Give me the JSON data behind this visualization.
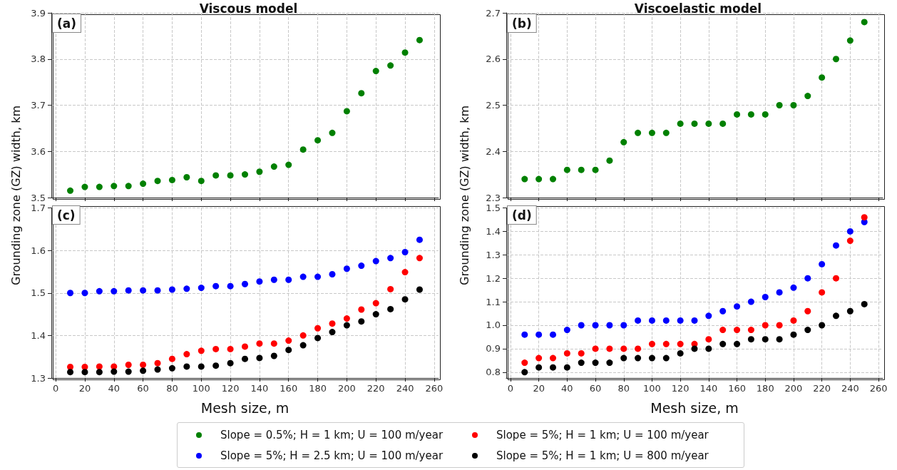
{
  "chart_data": [
    {
      "type": "scatter",
      "title": "Viscous model",
      "ylabel": "Grounding zone (GZ) width, km",
      "annotations": [
        "(a)"
      ],
      "x": [
        10,
        20,
        30,
        40,
        50,
        60,
        70,
        80,
        90,
        100,
        110,
        120,
        130,
        140,
        150,
        160,
        170,
        180,
        190,
        200,
        210,
        220,
        230,
        240,
        250
      ],
      "xlim": [
        -3,
        263
      ],
      "xticks": [
        0,
        20,
        40,
        60,
        80,
        100,
        120,
        140,
        160,
        180,
        200,
        220,
        240,
        260
      ],
      "ylim": [
        3.5,
        3.9
      ],
      "yticks": [
        3.5,
        3.6,
        3.7,
        3.8,
        3.9
      ],
      "tick_labels": "y",
      "grid": true,
      "marker": "circle",
      "legend": "bottom",
      "series": [
        {
          "name": "Slope = 0.5%; H = 1 km; U = 100 m/year",
          "color": "#008000",
          "values": [
            3.515,
            3.523,
            3.523,
            3.525,
            3.525,
            3.53,
            3.536,
            3.538,
            3.544,
            3.536,
            3.548,
            3.548,
            3.55,
            3.556,
            3.567,
            3.571,
            3.604,
            3.624,
            3.64,
            3.687,
            3.726,
            3.774,
            3.786,
            3.814,
            3.841
          ]
        }
      ]
    },
    {
      "type": "scatter",
      "title": "Viscoelastic model",
      "ylabel": "Grounding zone (GZ) width, km",
      "annotations": [
        "(b)"
      ],
      "x": [
        10,
        20,
        30,
        40,
        50,
        60,
        70,
        80,
        90,
        100,
        110,
        120,
        130,
        140,
        150,
        160,
        170,
        180,
        190,
        200,
        210,
        220,
        230,
        240,
        250
      ],
      "xlim": [
        -3,
        263
      ],
      "xticks": [
        0,
        20,
        40,
        60,
        80,
        100,
        120,
        140,
        160,
        180,
        200,
        220,
        240,
        260
      ],
      "ylim": [
        2.3,
        2.7
      ],
      "yticks": [
        2.3,
        2.4,
        2.5,
        2.6,
        2.7
      ],
      "tick_labels": "y",
      "grid": true,
      "marker": "circle",
      "legend": "bottom",
      "series": [
        {
          "name": "Slope = 0.5%; H = 1 km; U = 100 m/year",
          "color": "#008000",
          "values": [
            2.34,
            2.34,
            2.34,
            2.36,
            2.36,
            2.36,
            2.38,
            2.42,
            2.44,
            2.44,
            2.44,
            2.46,
            2.46,
            2.46,
            2.46,
            2.48,
            2.48,
            2.48,
            2.5,
            2.5,
            2.52,
            2.56,
            2.6,
            2.64,
            2.68
          ]
        }
      ]
    },
    {
      "type": "scatter",
      "xlabel": "Mesh size, m",
      "annotations": [
        "(c)"
      ],
      "x": [
        10,
        20,
        30,
        40,
        50,
        60,
        70,
        80,
        90,
        100,
        110,
        120,
        130,
        140,
        150,
        160,
        170,
        180,
        190,
        200,
        210,
        220,
        230,
        240,
        250
      ],
      "xlim": [
        -3,
        263
      ],
      "xticks": [
        0,
        20,
        40,
        60,
        80,
        100,
        120,
        140,
        160,
        180,
        200,
        220,
        240,
        260
      ],
      "ylim": [
        1.3,
        1.7
      ],
      "yticks": [
        1.3,
        1.4,
        1.5,
        1.6,
        1.7
      ],
      "grid": true,
      "marker": "circle",
      "legend": "bottom",
      "series": [
        {
          "name": "Slope = 5%; H = 2.5 km; U = 100 m/year",
          "color": "#0000ff",
          "values": [
            1.5,
            1.5,
            1.504,
            1.504,
            1.506,
            1.506,
            1.506,
            1.508,
            1.51,
            1.512,
            1.516,
            1.516,
            1.521,
            1.527,
            1.531,
            1.531,
            1.538,
            1.538,
            1.544,
            1.557,
            1.564,
            1.575,
            1.582,
            1.596,
            1.625
          ]
        },
        {
          "name": "Slope = 5%; H = 1 km; U = 100 m/year",
          "color": "#ff0000",
          "values": [
            1.326,
            1.326,
            1.327,
            1.327,
            1.331,
            1.331,
            1.335,
            1.345,
            1.356,
            1.364,
            1.368,
            1.368,
            1.374,
            1.381,
            1.381,
            1.388,
            1.4,
            1.417,
            1.428,
            1.44,
            1.461,
            1.476,
            1.509,
            1.549,
            1.582
          ]
        },
        {
          "name": "Slope = 5%; H = 1 km; U = 800 m/year",
          "color": "#000000",
          "values": [
            1.314,
            1.314,
            1.314,
            1.315,
            1.315,
            1.317,
            1.32,
            1.323,
            1.327,
            1.327,
            1.329,
            1.335,
            1.345,
            1.347,
            1.352,
            1.366,
            1.377,
            1.394,
            1.408,
            1.424,
            1.433,
            1.45,
            1.462,
            1.485,
            1.508
          ]
        }
      ]
    },
    {
      "type": "scatter",
      "xlabel": "Mesh size, m",
      "annotations": [
        "(d)"
      ],
      "x": [
        10,
        20,
        30,
        40,
        50,
        60,
        70,
        80,
        90,
        100,
        110,
        120,
        130,
        140,
        150,
        160,
        170,
        180,
        190,
        200,
        210,
        220,
        230,
        240,
        250
      ],
      "xlim": [
        -3,
        263
      ],
      "xticks": [
        0,
        20,
        40,
        60,
        80,
        100,
        120,
        140,
        160,
        180,
        200,
        220,
        240,
        260
      ],
      "ylim": [
        0.775,
        1.5
      ],
      "yticks": [
        0.8,
        0.9,
        {
          "value": 1,
          "label": "1.0"
        },
        1.1,
        1.2,
        1.3,
        1.4,
        1.5
      ],
      "grid": true,
      "marker": "circle",
      "legend": "bottom",
      "series": [
        {
          "name": "Slope = 5%; H = 2.5 km; U = 100 m/year",
          "color": "#0000ff",
          "values": [
            0.96,
            0.96,
            0.96,
            0.98,
            1.0,
            1.0,
            1.0,
            1.0,
            1.02,
            1.02,
            1.02,
            1.02,
            1.02,
            1.04,
            1.06,
            1.08,
            1.1,
            1.12,
            1.14,
            1.16,
            1.2,
            1.26,
            1.34,
            1.4,
            1.44
          ]
        },
        {
          "name": "Slope = 5%; H = 1 km; U = 100 m/year",
          "color": "#ff0000",
          "values": [
            0.84,
            0.86,
            0.86,
            0.88,
            0.88,
            0.9,
            0.9,
            0.9,
            0.9,
            0.92,
            0.92,
            0.92,
            0.92,
            0.94,
            0.98,
            0.98,
            0.98,
            1.0,
            1.0,
            1.02,
            1.06,
            1.14,
            1.2,
            1.36,
            1.46
          ]
        },
        {
          "name": "Slope = 5%; H = 1 km; U = 800 m/year",
          "color": "#000000",
          "values": [
            0.8,
            0.82,
            0.82,
            0.82,
            0.84,
            0.84,
            0.84,
            0.86,
            0.86,
            0.86,
            0.86,
            0.88,
            0.9,
            0.9,
            0.92,
            0.92,
            0.94,
            0.94,
            0.94,
            0.96,
            0.98,
            1.0,
            1.04,
            1.06,
            1.09
          ]
        }
      ]
    }
  ]
}
